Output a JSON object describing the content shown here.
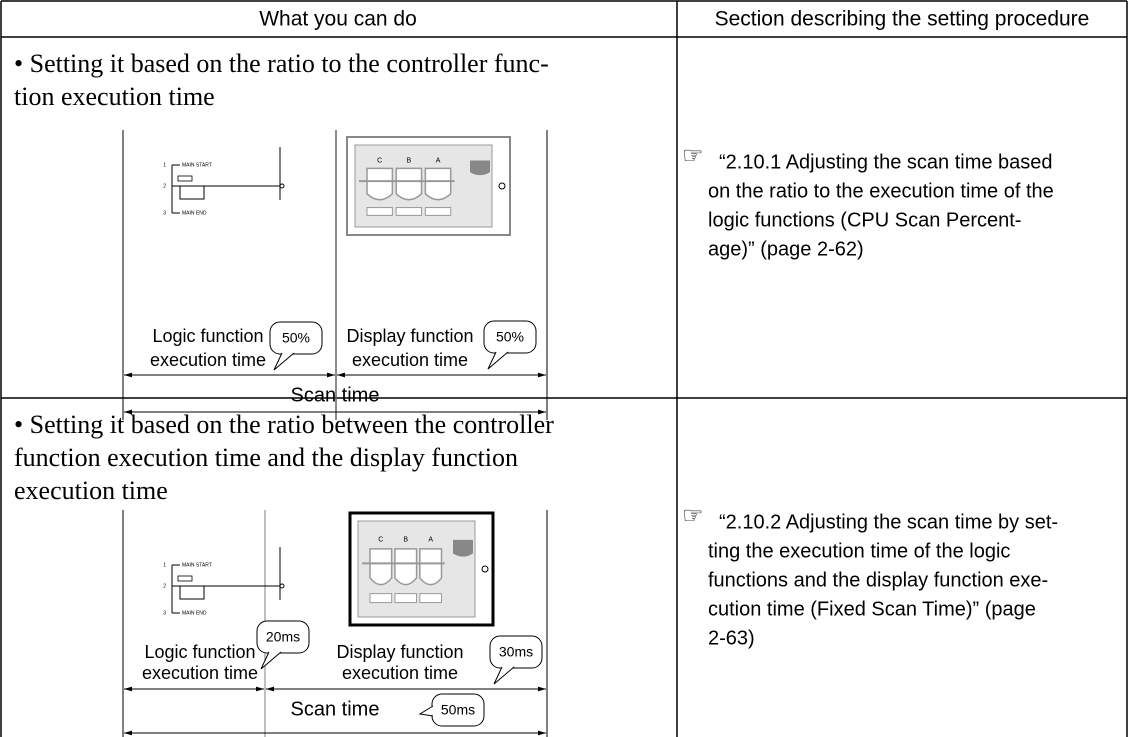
{
  "table": {
    "header": [
      "What you can do",
      "Section describing the setting procedure"
    ],
    "rows": [
      {
        "description": [
          "• Setting it based on the ratio to the controller func-",
          "tion execution time"
        ],
        "diagram": {
          "ladder": {
            "rungs": [
              "1",
              "2",
              "3"
            ],
            "start": "MAIN START",
            "end": "MAIN END"
          },
          "display_labels": [
            "C",
            "B",
            "A"
          ],
          "logic_label": [
            "Logic function",
            "execution time"
          ],
          "logic_value": "50%",
          "display_label": [
            "Display function",
            "execution time"
          ],
          "display_value": "50%",
          "scan_label": "Scan time"
        },
        "reference": {
          "icon": "☞",
          "lines": [
            "“2.10.1 Adjusting the scan time based",
            "on the ratio to the execution time of the",
            "logic functions (CPU Scan Percent-",
            "age)” (page 2-62)"
          ]
        }
      },
      {
        "description": [
          "• Setting it based on the ratio between the controller",
          "function execution time and the display function",
          "execution time"
        ],
        "diagram": {
          "ladder": {
            "rungs": [
              "1",
              "2",
              "3"
            ],
            "start": "MAIN START",
            "end": "MAIN END"
          },
          "display_labels": [
            "C",
            "B",
            "A"
          ],
          "logic_label": [
            "Logic function",
            "execution time"
          ],
          "logic_value": "20ms",
          "display_label": [
            "Display function",
            "execution time"
          ],
          "display_value": "30ms",
          "scan_label": "Scan time",
          "scan_value": "50ms"
        },
        "reference": {
          "icon": "☞",
          "lines": [
            "“2.10.2 Adjusting the scan time by set-",
            "ting the execution time of the logic",
            "functions and the display function exe-",
            "cution time (Fixed Scan Time)” (page",
            "2-63)"
          ]
        }
      }
    ]
  }
}
